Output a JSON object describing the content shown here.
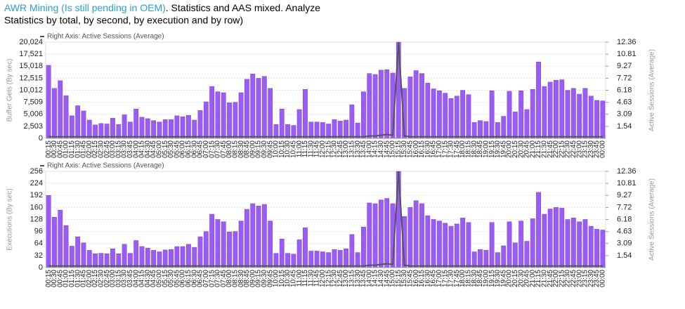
{
  "header": {
    "link": "AWR Mining (Is still pending in OEM)",
    "text": ". Statistics and AAS mixed. Analyze",
    "text2": "Statistics by total, by second, by execution and by row)"
  },
  "chart_data": [
    {
      "type": "bar",
      "ylabel": "Buffer Gets (By sec)",
      "y2label": "Active Sessions (Average)",
      "categories": [
        "00:15",
        "00:30",
        "00:45",
        "01:00",
        "01:15",
        "01:30",
        "01:45",
        "02:00",
        "02:15",
        "02:30",
        "02:45",
        "03:00",
        "03:15",
        "03:30",
        "03:45",
        "04:00",
        "04:15",
        "04:30",
        "04:45",
        "05:00",
        "05:15",
        "05:30",
        "05:45",
        "06:00",
        "06:15",
        "06:30",
        "06:45",
        "07:00",
        "07:15",
        "07:30",
        "07:45",
        "08:00",
        "08:15",
        "08:30",
        "08:45",
        "09:00",
        "09:15",
        "09:30",
        "09:45",
        "10:00",
        "10:15",
        "10:30",
        "10:45",
        "11:00",
        "11:15",
        "11:30",
        "11:45",
        "12:00",
        "12:15",
        "12:30",
        "12:45",
        "13:00",
        "13:15",
        "13:30",
        "13:45",
        "14:00",
        "14:15",
        "14:30",
        "14:45",
        "15:00",
        "15:15",
        "15:30",
        "15:45",
        "16:00",
        "16:15",
        "16:30",
        "16:45",
        "17:00",
        "17:15",
        "17:30",
        "17:45",
        "18:00",
        "18:15",
        "18:30",
        "18:45",
        "19:00",
        "19:15",
        "19:30",
        "19:45",
        "20:00",
        "20:15",
        "20:30",
        "20:45",
        "21:00",
        "21:15",
        "21:30",
        "21:45",
        "22:00",
        "22:15",
        "22:30",
        "22:45",
        "23:00",
        "23:15",
        "23:30",
        "23:45",
        "00:00"
      ],
      "series": [
        {
          "color": "#9b5cf6",
          "values": [
            15200,
            10400,
            12000,
            8900,
            4700,
            6800,
            5700,
            3800,
            2800,
            3100,
            3000,
            4200,
            2900,
            4900,
            3400,
            6100,
            4400,
            4100,
            3700,
            3400,
            3900,
            3900,
            4700,
            4500,
            4800,
            3800,
            5800,
            7600,
            10800,
            9700,
            9500,
            7400,
            7500,
            9500,
            12300,
            13400,
            12500,
            12900,
            10400,
            2900,
            6100,
            2900,
            2700,
            6000,
            10200,
            3400,
            3400,
            3300,
            3000,
            3900,
            3600,
            3800,
            7000,
            3200,
            9700,
            13500,
            13300,
            14200,
            14300,
            13600,
            20024,
            10400,
            12800,
            14100,
            13500,
            11500,
            10300,
            9900,
            9400,
            8300,
            8800,
            10000,
            9100,
            3300,
            3700,
            3500,
            9900,
            3300,
            4600,
            9800,
            5500,
            9900,
            6000,
            10200,
            15900,
            10800,
            11700,
            12100,
            12200,
            10000,
            10400,
            9200,
            10400,
            8800,
            7900,
            7800
          ]
        },
        {
          "name": "Right Axis: Active Sessions (Average)",
          "axis": "y2",
          "color": "#555555",
          "values": [
            0.2,
            0.2,
            0.2,
            0.2,
            0.2,
            0.2,
            0.2,
            0.2,
            0.2,
            0.2,
            0.2,
            0.2,
            0.2,
            0.2,
            0.2,
            0.2,
            0.2,
            0.2,
            0.2,
            0.2,
            0.2,
            0.2,
            0.2,
            0.2,
            0.2,
            0.2,
            0.2,
            0.2,
            0.2,
            0.2,
            0.2,
            0.2,
            0.2,
            0.2,
            0.2,
            0.2,
            0.2,
            0.2,
            0.2,
            0.2,
            0.2,
            0.2,
            0.2,
            0.2,
            0.2,
            0.2,
            0.2,
            0.2,
            0.2,
            0.2,
            0.2,
            0.2,
            0.2,
            0.2,
            0.2,
            0.3,
            0.3,
            0.4,
            0.5,
            0.4,
            12.36,
            0.3,
            0.2,
            0.2,
            0.2,
            0.2,
            0.2,
            0.2,
            0.2,
            0.2,
            0.2,
            0.2,
            0.2,
            0.2,
            0.2,
            0.2,
            0.2,
            0.2,
            0.2,
            0.2,
            0.2,
            0.2,
            0.2,
            0.2,
            0.2,
            0.2,
            0.2,
            0.2,
            0.2,
            0.2,
            0.2,
            0.2,
            0.2,
            0.2,
            0.2,
            0.2
          ]
        }
      ],
      "ylim": [
        0,
        20024
      ],
      "yticks": [
        0,
        {
          "value": 2503,
          "label": "2,503"
        },
        {
          "value": 5006,
          "label": "5,006"
        },
        {
          "value": 7509,
          "label": "7,509"
        },
        {
          "value": 10012,
          "label": "10,012"
        },
        {
          "value": 12515,
          "label": "12,515"
        },
        {
          "value": 15018,
          "label": "15,018"
        },
        {
          "value": 17521,
          "label": "17,521"
        },
        {
          "value": 20024,
          "label": "20,024"
        }
      ],
      "y2lim": [
        0,
        12.36
      ],
      "y2ticks": [
        1.54,
        3.09,
        4.63,
        6.18,
        7.72,
        9.27,
        10.81,
        12.36
      ],
      "grid": true
    },
    {
      "type": "bar",
      "ylabel": "Executions (By sec)",
      "y2label": "Active Sessions (Average)",
      "categories": [
        "00:15",
        "00:30",
        "00:45",
        "01:00",
        "01:15",
        "01:30",
        "01:45",
        "02:00",
        "02:15",
        "02:30",
        "02:45",
        "03:00",
        "03:15",
        "03:30",
        "03:45",
        "04:00",
        "04:15",
        "04:30",
        "04:45",
        "05:00",
        "05:15",
        "05:30",
        "05:45",
        "06:00",
        "06:15",
        "06:30",
        "06:45",
        "07:00",
        "07:15",
        "07:30",
        "07:45",
        "08:00",
        "08:15",
        "08:30",
        "08:45",
        "09:00",
        "09:15",
        "09:30",
        "09:45",
        "10:00",
        "10:15",
        "10:30",
        "10:45",
        "11:00",
        "11:15",
        "11:30",
        "11:45",
        "12:00",
        "12:15",
        "12:30",
        "12:45",
        "13:00",
        "13:15",
        "13:30",
        "13:45",
        "14:00",
        "14:15",
        "14:30",
        "14:45",
        "15:00",
        "15:15",
        "15:30",
        "15:45",
        "16:00",
        "16:15",
        "16:30",
        "16:45",
        "17:00",
        "17:15",
        "17:30",
        "17:45",
        "18:00",
        "18:15",
        "18:30",
        "18:45",
        "19:00",
        "19:15",
        "19:30",
        "19:45",
        "20:00",
        "20:15",
        "20:30",
        "20:45",
        "21:00",
        "21:15",
        "21:30",
        "21:45",
        "22:00",
        "22:15",
        "22:30",
        "22:45",
        "23:00",
        "23:15",
        "23:30",
        "23:45",
        "00:00"
      ],
      "series": [
        {
          "color": "#9b5cf6",
          "values": [
            192,
            134,
            153,
            112,
            57,
            82,
            66,
            46,
            37,
            38,
            37,
            50,
            37,
            62,
            38,
            72,
            56,
            52,
            46,
            42,
            47,
            48,
            56,
            56,
            62,
            54,
            82,
            96,
            142,
            128,
            122,
            95,
            96,
            124,
            155,
            170,
            164,
            168,
            124,
            38,
            76,
            38,
            36,
            74,
            106,
            44,
            44,
            42,
            40,
            48,
            46,
            50,
            88,
            40,
            108,
            172,
            170,
            180,
            184,
            170,
            256,
            136,
            160,
            178,
            170,
            138,
            128,
            124,
            118,
            110,
            116,
            132,
            120,
            42,
            48,
            46,
            120,
            40,
            58,
            122,
            66,
            124,
            70,
            130,
            200,
            142,
            156,
            160,
            158,
            128,
            132,
            122,
            128,
            110,
            102,
            100
          ]
        },
        {
          "name": "Right Axis: Active Sessions (Average)",
          "axis": "y2",
          "color": "#555555",
          "values": [
            0.2,
            0.2,
            0.2,
            0.2,
            0.2,
            0.2,
            0.2,
            0.2,
            0.2,
            0.2,
            0.2,
            0.2,
            0.2,
            0.2,
            0.2,
            0.2,
            0.2,
            0.2,
            0.2,
            0.2,
            0.2,
            0.2,
            0.2,
            0.2,
            0.2,
            0.2,
            0.2,
            0.2,
            0.2,
            0.2,
            0.2,
            0.2,
            0.2,
            0.2,
            0.2,
            0.2,
            0.2,
            0.2,
            0.2,
            0.2,
            0.2,
            0.2,
            0.2,
            0.2,
            0.2,
            0.2,
            0.2,
            0.2,
            0.2,
            0.2,
            0.2,
            0.2,
            0.2,
            0.2,
            0.2,
            0.3,
            0.3,
            0.4,
            0.5,
            0.4,
            12.36,
            0.3,
            0.2,
            0.2,
            0.2,
            0.2,
            0.2,
            0.2,
            0.2,
            0.2,
            0.2,
            0.2,
            0.2,
            0.2,
            0.2,
            0.2,
            0.2,
            0.2,
            0.2,
            0.2,
            0.2,
            0.2,
            0.2,
            0.2,
            0.2,
            0.2,
            0.2,
            0.2,
            0.2,
            0.2,
            0.2,
            0.2,
            0.2,
            0.2,
            0.2,
            0.2
          ]
        }
      ],
      "ylim": [
        0,
        256
      ],
      "yticks": [
        0,
        32,
        64,
        96,
        128,
        160,
        192,
        224,
        256
      ],
      "y2lim": [
        0,
        12.36
      ],
      "y2ticks": [
        1.54,
        3.09,
        4.63,
        6.18,
        7.72,
        9.27,
        10.81,
        12.36
      ],
      "grid": true
    }
  ]
}
